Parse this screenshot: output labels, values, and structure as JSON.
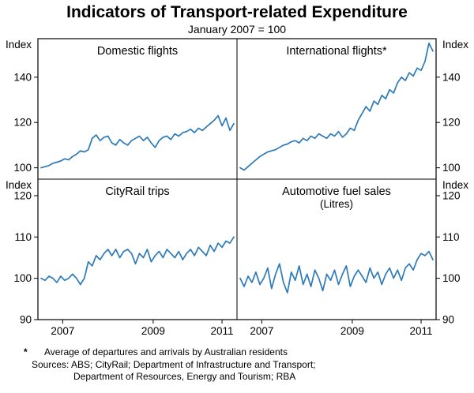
{
  "page": {
    "title": "Indicators of Transport-related Expenditure",
    "subtitle": "January 2007 = 100",
    "footnote_marker": "*",
    "footnote": "Average of departures and arrivals by Australian residents",
    "sources_line1": "Sources: ABS; CityRail; Department of Infrastructure and Transport;",
    "sources_line2": "Department of Resources, Energy and Tourism; RBA"
  },
  "chart_data": {
    "type": "line",
    "title": "Indicators of Transport-related Expenditure",
    "subtitle": "January 2007 = 100",
    "line_color": "#2d7ab9",
    "grid": false,
    "legend": "none",
    "x": {
      "start": "2007-01",
      "freq": "monthly",
      "n_points": 50,
      "tick_labels": [
        "2007",
        "2009",
        "2011"
      ],
      "tick_month_index": [
        5.5,
        28.5,
        46
      ]
    },
    "rows": [
      {
        "ylabel": "Index",
        "ylim": [
          95,
          157
        ],
        "yticks": [
          100,
          120,
          140
        ]
      },
      {
        "ylabel": "Index",
        "ylim": [
          90,
          124
        ],
        "yticks": [
          90,
          100,
          110,
          120
        ]
      }
    ],
    "panels": [
      {
        "title": "Domestic flights",
        "row": 0,
        "col": 0,
        "values": [
          100,
          100.5,
          101,
          102,
          102.5,
          103,
          104,
          103.5,
          105,
          106,
          107.5,
          107,
          108,
          113,
          114.5,
          112,
          113.5,
          114,
          111,
          110,
          112.5,
          111,
          110,
          112,
          113,
          114,
          112,
          113.5,
          111,
          109,
          112,
          113.5,
          114,
          112.5,
          115,
          114,
          115.5,
          116,
          117,
          115.5,
          117.5,
          116.5,
          118,
          119.5,
          121,
          123,
          118.5,
          122,
          116.5,
          119.5
        ]
      },
      {
        "title": "International flights*",
        "row": 0,
        "col": 1,
        "values": [
          100,
          99,
          100.5,
          102,
          103.5,
          105,
          106,
          107,
          107.5,
          108,
          109,
          110,
          110.5,
          111.5,
          112,
          111,
          113,
          112,
          114,
          113,
          115,
          114,
          113,
          115,
          114,
          116,
          113.5,
          115,
          117.5,
          116.5,
          121,
          124,
          127,
          125,
          129.5,
          128,
          132,
          130.5,
          134.5,
          133,
          137.5,
          140,
          138.5,
          142,
          140.5,
          144,
          143,
          147,
          155,
          151.5
        ]
      },
      {
        "title": "CityRail trips",
        "row": 1,
        "col": 0,
        "values": [
          100,
          99.5,
          100.5,
          100,
          99,
          100.5,
          99.5,
          100,
          101,
          100,
          98.5,
          100,
          104,
          103,
          105.5,
          104.5,
          106,
          107,
          105.5,
          107,
          105,
          106.5,
          107,
          106,
          103.5,
          106,
          105,
          107,
          104,
          105.5,
          106.5,
          105,
          107,
          106,
          105,
          106.5,
          104.5,
          106,
          107,
          105.5,
          107.5,
          106.5,
          105.5,
          108,
          106.5,
          108.5,
          107.5,
          109,
          108.5,
          110
        ]
      },
      {
        "title": "Automotive fuel sales",
        "subtitle": "(Litres)",
        "row": 1,
        "col": 1,
        "values": [
          100,
          98,
          100.5,
          99,
          101.5,
          98.5,
          100,
          102.5,
          97.5,
          101,
          103.5,
          99,
          96.5,
          101.5,
          99.5,
          103,
          98.5,
          101,
          98,
          102,
          100,
          97,
          101,
          99.5,
          102,
          98.5,
          101,
          103,
          98,
          100.5,
          102,
          100.5,
          99,
          102.5,
          100,
          101.5,
          98.5,
          101,
          102.5,
          100,
          102,
          99.5,
          102.5,
          103.5,
          102,
          104.5,
          106,
          105.5,
          106.5,
          104.5
        ]
      }
    ]
  }
}
